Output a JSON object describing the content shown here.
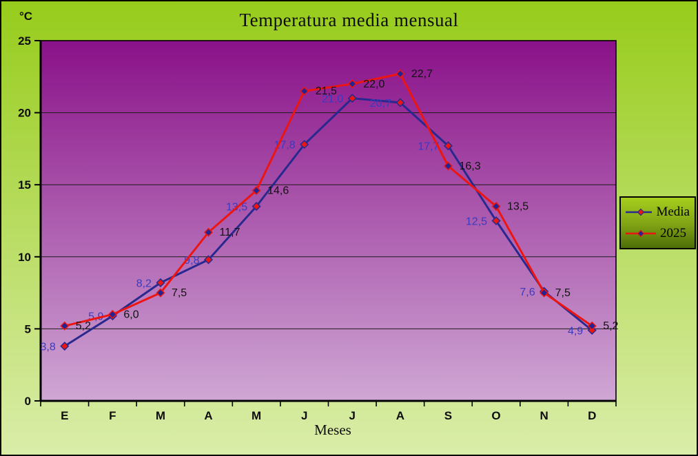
{
  "chart_data": {
    "type": "line",
    "title": "Temperatura media mensual",
    "y_unit": "°C",
    "xlabel": "Meses",
    "categories": [
      "E",
      "F",
      "M",
      "A",
      "M",
      "J",
      "J",
      "A",
      "S",
      "O",
      "N",
      "D"
    ],
    "series": [
      {
        "name": "Media",
        "values": [
          3.8,
          5.9,
          8.2,
          9.8,
          13.5,
          17.8,
          21.0,
          20.7,
          17.7,
          12.5,
          7.6,
          4.9
        ],
        "labels": [
          "3,8",
          "5,9",
          "8,2",
          "9,8",
          "13,5",
          "17,8",
          "21,0",
          "20,7",
          "17,7",
          "12,5",
          "7,6",
          "4,9"
        ],
        "line_color": "#28288e",
        "marker_fill": "#ec1512",
        "marker_stroke": "#28288e",
        "label_color": "#3a3ac0"
      },
      {
        "name": "2025",
        "values": [
          5.2,
          6.0,
          7.5,
          11.7,
          14.6,
          21.5,
          22.0,
          22.7,
          16.3,
          13.5,
          7.5,
          5.2
        ],
        "labels": [
          "5,2",
          "6,0",
          "7,5",
          "11,7",
          "14,6",
          "21,5",
          "22,0",
          "22,7",
          "16,3",
          "13,5",
          "7,5",
          "5,2"
        ],
        "line_color": "#ec1512",
        "marker_fill": "#232394",
        "marker_stroke": "#ec1512",
        "label_color": "#111111"
      }
    ],
    "ylim": [
      0,
      25
    ],
    "ytick_interval": 5,
    "yticks": [
      "0",
      "5",
      "10",
      "15",
      "20",
      "25"
    ],
    "grid": true,
    "legend_position": "right"
  },
  "colors": {
    "page_bg_top": "#97cc1b",
    "page_bg_bottom": "#daeda9",
    "plot_bg_top": "#8a1189",
    "plot_bg_bottom": "#cfa7d4",
    "gridline": "#1a1a1a",
    "axis": "#000000",
    "legend_bg_top": "#a6cf1e",
    "legend_bg_bottom": "#4e6e08"
  }
}
